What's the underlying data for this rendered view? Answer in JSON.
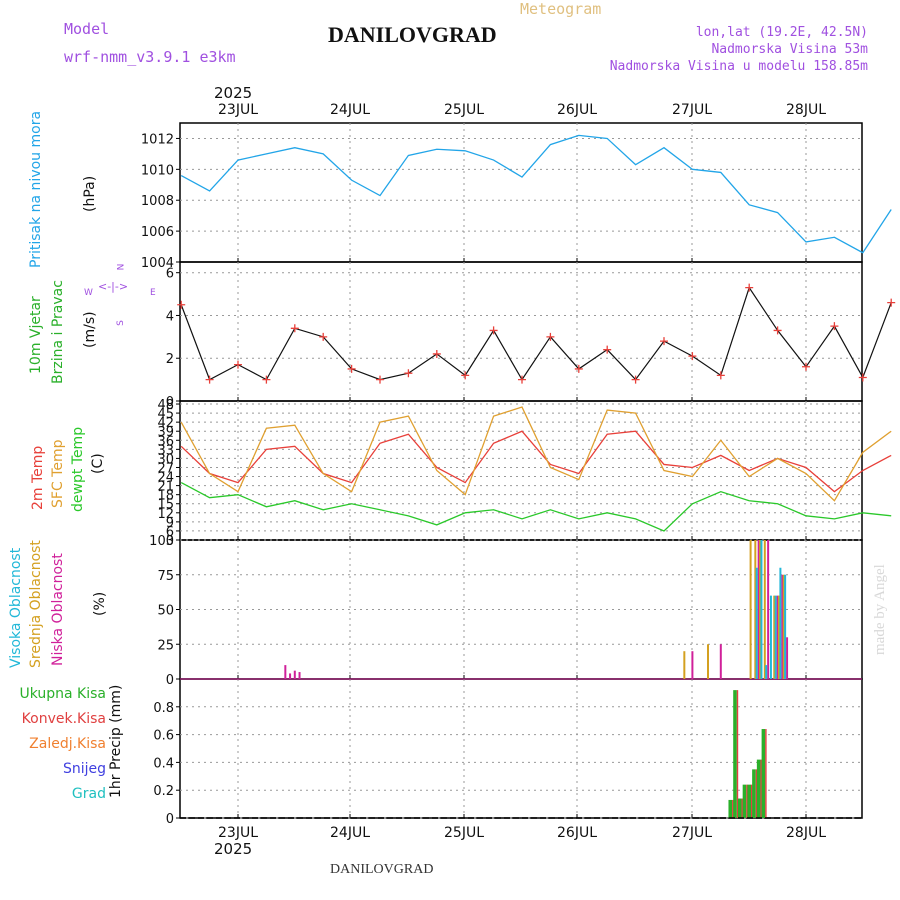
{
  "header": {
    "model_label": "Model",
    "model_name": "wrf-nmm_v3.9.1 e3km",
    "title": "DANILOVGRAD",
    "subtitle": "Meteogram",
    "coords": "lon,lat (19.2E, 42.5N)",
    "elevation": "Nadmorska Visina 53m",
    "model_elevation": "Nadmorska Visina u modelu 158.85m",
    "year": "2025",
    "footer_title": "DANILOVGRAD",
    "watermark": "made by Angel"
  },
  "colors": {
    "pressure": "#22a5e8",
    "wind_label": "#2ab02a",
    "temp2m": "#e8403a",
    "sfc": "#e0a030",
    "dewpt": "#2ac82a",
    "cloud_high": "#22b8d8",
    "cloud_mid": "#d4a020",
    "cloud_low": "#d0209a",
    "precip_total": "#2ab02a",
    "precip_conv": "#e04040",
    "precip_frz": "#f08030",
    "precip_snow": "#4040e0",
    "precip_grad": "#20c0c0",
    "purple_text": "#a050e0"
  },
  "chart_data": [
    {
      "id": "pressure",
      "type": "line",
      "ylabel": "Pritisak na nivou mora",
      "unit": "(hPa)",
      "ylim": [
        1004,
        1013
      ],
      "yticks": [
        1004,
        1006,
        1008,
        1010,
        1012
      ],
      "days": [
        "23JUL",
        "24JUL",
        "25JUL",
        "26JUL",
        "27JUL",
        "28JUL"
      ],
      "x_hours": [
        0,
        6,
        12,
        18,
        24,
        30,
        36,
        42,
        48,
        54,
        60,
        66,
        72,
        78,
        84,
        90,
        96,
        102,
        108,
        114,
        120,
        126,
        132,
        138,
        144,
        150
      ],
      "values": [
        1009.6,
        1008.6,
        1010.6,
        1011.0,
        1011.4,
        1011.0,
        1009.3,
        1008.3,
        1010.9,
        1011.3,
        1011.2,
        1010.6,
        1009.5,
        1011.6,
        1012.2,
        1012.0,
        1010.3,
        1011.4,
        1010.0,
        1009.8,
        1007.7,
        1007.2,
        1005.3,
        1005.6,
        1004.6,
        1007.4
      ]
    },
    {
      "id": "wind",
      "type": "line",
      "ylabel": [
        "10m Vjetar",
        "Brzina i Pravac"
      ],
      "unit": "(m/s)",
      "compass": [
        "N",
        "W",
        "E",
        "S"
      ],
      "ylim": [
        0,
        6.5
      ],
      "yticks": [
        0,
        2,
        4,
        6
      ],
      "x_hours": [
        0,
        6,
        12,
        18,
        24,
        30,
        36,
        42,
        48,
        54,
        60,
        66,
        72,
        78,
        84,
        90,
        96,
        102,
        108,
        114,
        120,
        126,
        132,
        138,
        144,
        150
      ],
      "values": [
        4.5,
        1.0,
        1.7,
        1.0,
        3.4,
        3.0,
        1.5,
        1.0,
        1.3,
        2.2,
        1.2,
        3.3,
        1.0,
        3.0,
        1.5,
        2.4,
        1.0,
        2.8,
        2.1,
        1.2,
        5.3,
        3.3,
        1.6,
        3.5,
        1.1,
        4.6
      ]
    },
    {
      "id": "temperature",
      "type": "line",
      "ylabel": [
        "2m Temp",
        "SFC Temp",
        "dewpt Temp"
      ],
      "unit": "(C)",
      "ylim": [
        3,
        49
      ],
      "yticks": [
        3,
        6,
        9,
        12,
        15,
        18,
        21,
        24,
        27,
        30,
        33,
        36,
        39,
        42,
        45,
        48
      ],
      "x_hours": [
        0,
        6,
        12,
        18,
        24,
        30,
        36,
        42,
        48,
        54,
        60,
        66,
        72,
        78,
        84,
        90,
        96,
        102,
        108,
        114,
        120,
        126,
        132,
        138,
        144,
        150
      ],
      "series": [
        {
          "name": "2m Temp",
          "values": [
            34,
            25,
            22,
            33,
            34,
            25,
            22,
            35,
            38,
            27,
            22,
            35,
            39,
            28,
            25,
            38,
            39,
            28,
            27,
            31,
            26,
            30,
            27,
            19,
            26,
            31
          ]
        },
        {
          "name": "SFC Temp",
          "values": [
            42,
            25,
            19,
            40,
            41,
            25,
            19,
            42,
            44,
            26,
            18,
            44,
            47,
            27,
            23,
            46,
            45,
            26,
            24,
            36,
            24,
            30,
            25,
            16,
            32,
            39
          ]
        },
        {
          "name": "dewpt Temp",
          "values": [
            22,
            17,
            18,
            14,
            16,
            13,
            15,
            13,
            11,
            8,
            12,
            13,
            10,
            13,
            10,
            12,
            10,
            6,
            15,
            19,
            16,
            15,
            11,
            10,
            12,
            11
          ]
        }
      ]
    },
    {
      "id": "clouds",
      "type": "bar",
      "ylabel": [
        "Visoka Oblacnost",
        "Srednja Oblacnost",
        "Niska Oblacnost"
      ],
      "unit": "(%)",
      "ylim": [
        0,
        100
      ],
      "yticks": [
        0,
        25,
        50,
        75,
        100
      ],
      "series": [
        {
          "name": "Niska Oblacnost",
          "x_hours": [
            22,
            23,
            24,
            25,
            108,
            114,
            122,
            124,
            126,
            127,
            128
          ],
          "values": [
            10,
            4,
            6,
            5,
            20,
            25,
            100,
            100,
            60,
            75,
            30
          ]
        },
        {
          "name": "Srednja Oblacnost",
          "x_hours": [
            106,
            111,
            120,
            121,
            122,
            123,
            125,
            126,
            127
          ],
          "values": [
            20,
            25,
            100,
            100,
            100,
            100,
            60,
            60,
            75
          ]
        },
        {
          "name": "Visoka Oblacnost",
          "x_hours": [
            121,
            122,
            123,
            124,
            125,
            126,
            127
          ],
          "values": [
            80,
            100,
            10,
            60,
            60,
            80,
            75
          ]
        }
      ]
    },
    {
      "id": "precip",
      "type": "bar",
      "ylabel": "1hr Precip (mm)",
      "legend": [
        "Ukupna Kisa",
        "Konvek.Kisa",
        "Zaledj.Kisa",
        "Snijeg",
        "Grad"
      ],
      "ylim": [
        0,
        1.0
      ],
      "yticks": [
        0,
        0.2,
        0.4,
        0.6,
        0.8
      ],
      "x_hours": [
        116,
        117,
        118,
        119,
        120,
        121,
        122,
        123
      ],
      "values": [
        0.13,
        0.92,
        0.14,
        0.24,
        0.24,
        0.35,
        0.42,
        0.64
      ]
    }
  ]
}
